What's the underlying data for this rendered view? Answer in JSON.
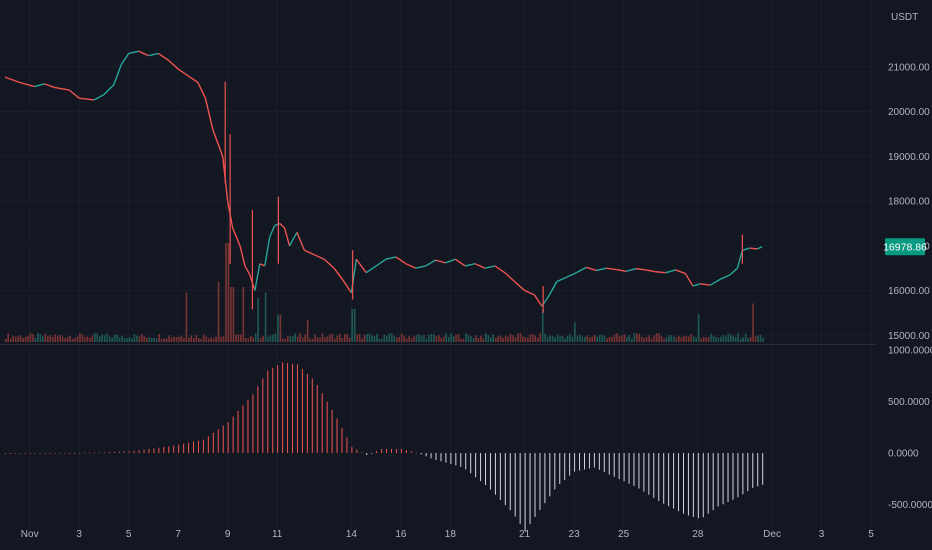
{
  "colors": {
    "background": "#131722",
    "grid": "#1b1f2b",
    "text": "#b2b5be",
    "up": "#26a69a",
    "down": "#ef5350",
    "volume_up": "#1f5a54",
    "volume_down": "#7a3434",
    "osc_positive": "#ef5350",
    "osc_negative": "#d1d4dc",
    "price_tag": "#089981",
    "pane_divider": "#2a2e39"
  },
  "chart_data": [
    {
      "type": "line",
      "description_of_series": "BTC/USDT price",
      "currency_label": "USDT",
      "last_price_label": "16978.86",
      "ylim": [
        14850,
        21600
      ],
      "y_ticks": [
        15000,
        16000,
        17000,
        18000,
        19000,
        20000,
        21000
      ],
      "y_tick_labels": [
        "15000.00",
        "16000.00",
        "17000.00",
        "18000.00",
        "19000.00",
        "20000.00",
        "21000.00"
      ],
      "x_axis": {
        "domain_days": [
          -0.2,
          35.2
        ],
        "ticks": [
          {
            "day": 1,
            "label": "Nov"
          },
          {
            "day": 3,
            "label": "3"
          },
          {
            "day": 5,
            "label": "5"
          },
          {
            "day": 7,
            "label": "7"
          },
          {
            "day": 9,
            "label": "9"
          },
          {
            "day": 11,
            "label": "11"
          },
          {
            "day": 14,
            "label": "14"
          },
          {
            "day": 16,
            "label": "16"
          },
          {
            "day": 18,
            "label": "18"
          },
          {
            "day": 21,
            "label": "21"
          },
          {
            "day": 23,
            "label": "23"
          },
          {
            "day": 25,
            "label": "25"
          },
          {
            "day": 28,
            "label": "28"
          },
          {
            "day": 31,
            "label": "Dec"
          },
          {
            "day": 33,
            "label": "3"
          },
          {
            "day": 35,
            "label": "5"
          }
        ]
      },
      "price_path": [
        [
          0.0,
          20770
        ],
        [
          0.6,
          20650
        ],
        [
          1.2,
          20560
        ],
        [
          1.6,
          20620
        ],
        [
          2.0,
          20540
        ],
        [
          2.6,
          20480
        ],
        [
          3.0,
          20300
        ],
        [
          3.6,
          20260
        ],
        [
          4.0,
          20380
        ],
        [
          4.4,
          20600
        ],
        [
          4.7,
          21050
        ],
        [
          5.0,
          21300
        ],
        [
          5.4,
          21350
        ],
        [
          5.8,
          21250
        ],
        [
          6.2,
          21300
        ],
        [
          6.6,
          21150
        ],
        [
          7.0,
          20950
        ],
        [
          7.4,
          20800
        ],
        [
          7.8,
          20650
        ],
        [
          8.1,
          20300
        ],
        [
          8.4,
          19600
        ],
        [
          8.8,
          19000
        ],
        [
          9.0,
          18000
        ],
        [
          9.2,
          17400
        ],
        [
          9.5,
          17000
        ],
        [
          9.7,
          16550
        ],
        [
          9.9,
          16350
        ],
        [
          10.1,
          16000
        ],
        [
          10.3,
          16600
        ],
        [
          10.5,
          16550
        ],
        [
          10.7,
          17200
        ],
        [
          10.9,
          17450
        ],
        [
          11.1,
          17500
        ],
        [
          11.3,
          17400
        ],
        [
          11.5,
          17000
        ],
        [
          11.8,
          17300
        ],
        [
          12.1,
          16900
        ],
        [
          12.5,
          16800
        ],
        [
          12.9,
          16700
        ],
        [
          13.3,
          16500
        ],
        [
          13.7,
          16200
        ],
        [
          14.0,
          15950
        ],
        [
          14.2,
          16700
        ],
        [
          14.6,
          16400
        ],
        [
          15.0,
          16550
        ],
        [
          15.4,
          16700
        ],
        [
          15.8,
          16750
        ],
        [
          16.2,
          16600
        ],
        [
          16.6,
          16500
        ],
        [
          17.0,
          16550
        ],
        [
          17.4,
          16680
        ],
        [
          17.8,
          16620
        ],
        [
          18.2,
          16700
        ],
        [
          18.6,
          16550
        ],
        [
          19.0,
          16600
        ],
        [
          19.4,
          16500
        ],
        [
          19.8,
          16550
        ],
        [
          20.2,
          16400
        ],
        [
          20.6,
          16200
        ],
        [
          21.0,
          16000
        ],
        [
          21.4,
          15900
        ],
        [
          21.7,
          15650
        ],
        [
          22.0,
          15900
        ],
        [
          22.3,
          16200
        ],
        [
          22.7,
          16300
        ],
        [
          23.1,
          16400
        ],
        [
          23.5,
          16520
        ],
        [
          23.9,
          16450
        ],
        [
          24.3,
          16500
        ],
        [
          24.7,
          16470
        ],
        [
          25.1,
          16430
        ],
        [
          25.5,
          16490
        ],
        [
          25.9,
          16460
        ],
        [
          26.3,
          16420
        ],
        [
          26.7,
          16400
        ],
        [
          27.1,
          16460
        ],
        [
          27.5,
          16380
        ],
        [
          27.8,
          16100
        ],
        [
          28.1,
          16150
        ],
        [
          28.5,
          16120
        ],
        [
          28.9,
          16250
        ],
        [
          29.3,
          16350
        ],
        [
          29.6,
          16500
        ],
        [
          29.8,
          16900
        ],
        [
          30.1,
          16950
        ],
        [
          30.4,
          16930
        ],
        [
          30.6,
          16978.86
        ]
      ],
      "spikes": [
        [
          8.9,
          20670,
          18400
        ],
        [
          9.1,
          19500,
          16600
        ],
        [
          10.0,
          17800,
          15580
        ],
        [
          11.05,
          18100,
          16600
        ],
        [
          14.05,
          16900,
          15800
        ],
        [
          21.75,
          16100,
          15500
        ],
        [
          29.8,
          17250,
          16600
        ]
      ],
      "volume": {
        "baseline_level": 0.055,
        "spikes": [
          [
            7.3,
            0.45
          ],
          [
            8.6,
            0.55
          ],
          [
            8.95,
            0.9
          ],
          [
            9.15,
            0.5
          ],
          [
            9.6,
            0.5
          ],
          [
            10.2,
            0.4
          ],
          [
            10.5,
            0.45
          ],
          [
            11.05,
            0.25
          ],
          [
            12.2,
            0.2
          ],
          [
            14.05,
            0.3
          ],
          [
            21.7,
            0.3
          ],
          [
            23.0,
            0.18
          ],
          [
            28.0,
            0.25
          ],
          [
            30.2,
            0.35
          ]
        ]
      }
    },
    {
      "type": "bar",
      "description_of_series": "oscillator histogram",
      "ylim": [
        -650,
        1000
      ],
      "y_ticks": [
        1000,
        500,
        0,
        -500
      ],
      "y_tick_labels": [
        "1000.0000",
        "500.0000",
        "0.0000",
        "-500.0000"
      ],
      "profile": [
        [
          0.0,
          0
        ],
        [
          3.0,
          2
        ],
        [
          5.0,
          15
        ],
        [
          6.0,
          45
        ],
        [
          7.0,
          80
        ],
        [
          8.0,
          130
        ],
        [
          9.0,
          300
        ],
        [
          10.0,
          570
        ],
        [
          10.6,
          800
        ],
        [
          11.2,
          880
        ],
        [
          11.8,
          860
        ],
        [
          12.5,
          700
        ],
        [
          13.3,
          380
        ],
        [
          14.0,
          60
        ],
        [
          14.6,
          -20
        ],
        [
          15.2,
          40
        ],
        [
          16.0,
          40
        ],
        [
          16.6,
          5
        ],
        [
          17.3,
          -60
        ],
        [
          18.5,
          -140
        ],
        [
          19.5,
          -330
        ],
        [
          20.5,
          -580
        ],
        [
          21.0,
          -760
        ],
        [
          21.4,
          -620
        ],
        [
          22.3,
          -320
        ],
        [
          23.0,
          -180
        ],
        [
          23.8,
          -140
        ],
        [
          24.5,
          -220
        ],
        [
          25.5,
          -330
        ],
        [
          26.5,
          -480
        ],
        [
          27.5,
          -600
        ],
        [
          28.1,
          -640
        ],
        [
          28.8,
          -520
        ],
        [
          29.6,
          -430
        ],
        [
          30.2,
          -340
        ],
        [
          30.7,
          -300
        ]
      ]
    }
  ]
}
